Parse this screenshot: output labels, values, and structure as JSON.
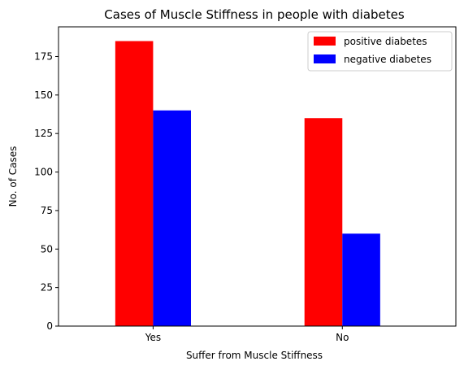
{
  "chart_data": {
    "type": "bar",
    "title": "Cases of Muscle Stiffness in people with diabetes",
    "xlabel": "Suffer from Muscle Stiffness",
    "ylabel": "No. of Cases",
    "categories": [
      "Yes",
      "No"
    ],
    "series": [
      {
        "name": "positive diabetes",
        "color": "#ff0000",
        "values": [
          185,
          135
        ]
      },
      {
        "name": "negative diabetes",
        "color": "#0000ff",
        "values": [
          140,
          60
        ]
      }
    ],
    "ylim": [
      0,
      194.25
    ],
    "yticks": [
      0,
      25,
      50,
      75,
      100,
      125,
      150,
      175
    ],
    "grid": false,
    "legend_position": "top-right"
  }
}
